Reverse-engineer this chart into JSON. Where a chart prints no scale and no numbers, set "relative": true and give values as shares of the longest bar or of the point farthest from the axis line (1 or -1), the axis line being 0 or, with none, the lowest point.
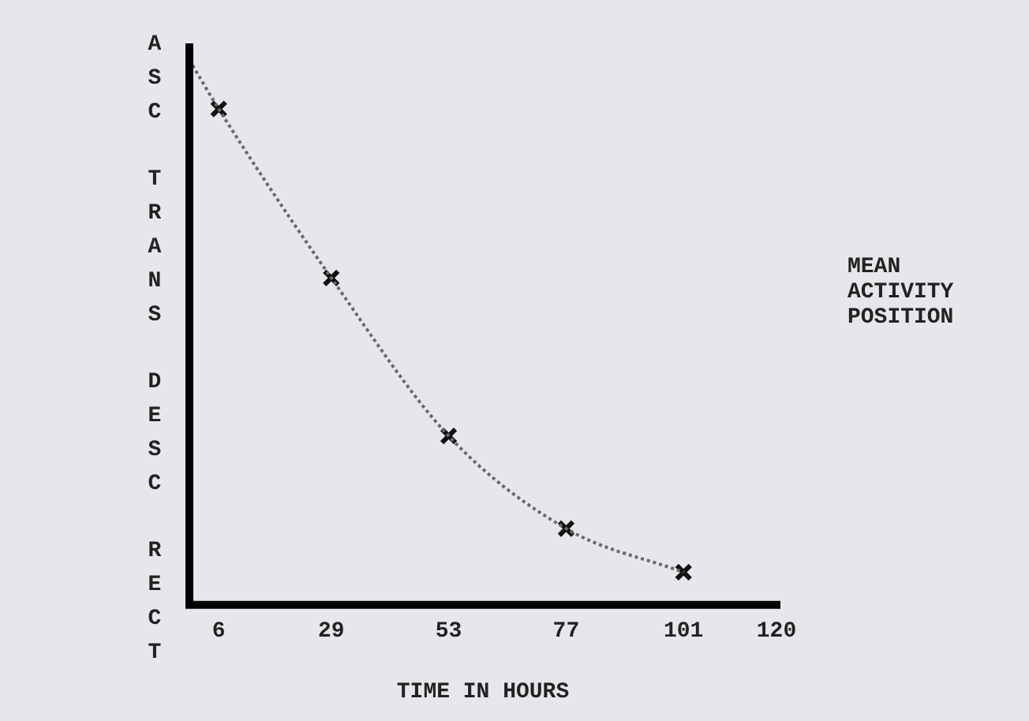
{
  "chart_data": {
    "type": "line",
    "relative": true,
    "xlabel": "TIME IN HOURS",
    "ylabel": "ASC TRANS DESC RECT",
    "annotations": [
      "MEAN ACTIVITY POSITION"
    ],
    "xlim": [
      0,
      120
    ],
    "xticks": [
      6,
      29,
      53,
      77,
      101,
      120
    ],
    "grid": false,
    "legend": false,
    "series": [
      {
        "color": "#6a6a6a",
        "marker": "none",
        "line_style": "dotted",
        "x": [
          0,
          6,
          29,
          53,
          77,
          101
        ],
        "values": [
          1,
          0.91,
          0.6,
          0.31,
          0.14,
          0.06
        ]
      },
      {
        "type": "scatter",
        "color": "#111111",
        "marker": "cross",
        "x": [
          6,
          29,
          53,
          77,
          101
        ],
        "values": [
          0.91,
          0.6,
          0.31,
          0.14,
          0.06
        ]
      }
    ]
  }
}
